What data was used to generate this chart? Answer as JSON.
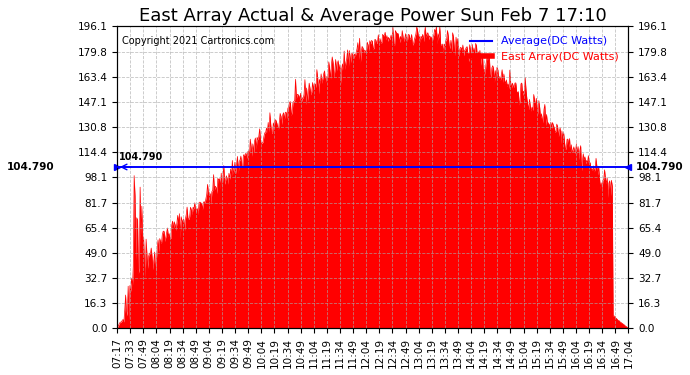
{
  "title": "East Array Actual & Average Power Sun Feb 7 17:10",
  "copyright": "Copyright 2021 Cartronics.com",
  "legend_avg": "Average(DC Watts)",
  "legend_east": "East Array(DC Watts)",
  "avg_value": 104.79,
  "ymin": 0.0,
  "ymax": 196.1,
  "yticks": [
    0.0,
    16.3,
    32.7,
    49.0,
    65.4,
    81.7,
    98.1,
    114.4,
    130.8,
    147.1,
    163.4,
    179.8,
    196.1
  ],
  "avg_line_color": "#0000ff",
  "fill_color": "#ff0000",
  "line_color": "#ff0000",
  "bg_color": "#ffffff",
  "grid_color": "#aaaaaa",
  "title_fontsize": 13,
  "tick_fontsize": 7.5,
  "avg_annotation": "104.790",
  "xtick_labels": [
    "07:17",
    "07:33",
    "07:49",
    "08:04",
    "08:19",
    "08:34",
    "08:49",
    "09:04",
    "09:19",
    "09:34",
    "09:49",
    "10:04",
    "10:19",
    "10:34",
    "10:49",
    "11:04",
    "11:19",
    "11:34",
    "11:49",
    "12:04",
    "12:19",
    "12:34",
    "12:49",
    "13:04",
    "13:19",
    "13:34",
    "13:49",
    "14:04",
    "14:19",
    "14:34",
    "14:49",
    "15:04",
    "15:19",
    "15:34",
    "15:49",
    "16:04",
    "16:19",
    "16:34",
    "16:49",
    "17:04"
  ]
}
